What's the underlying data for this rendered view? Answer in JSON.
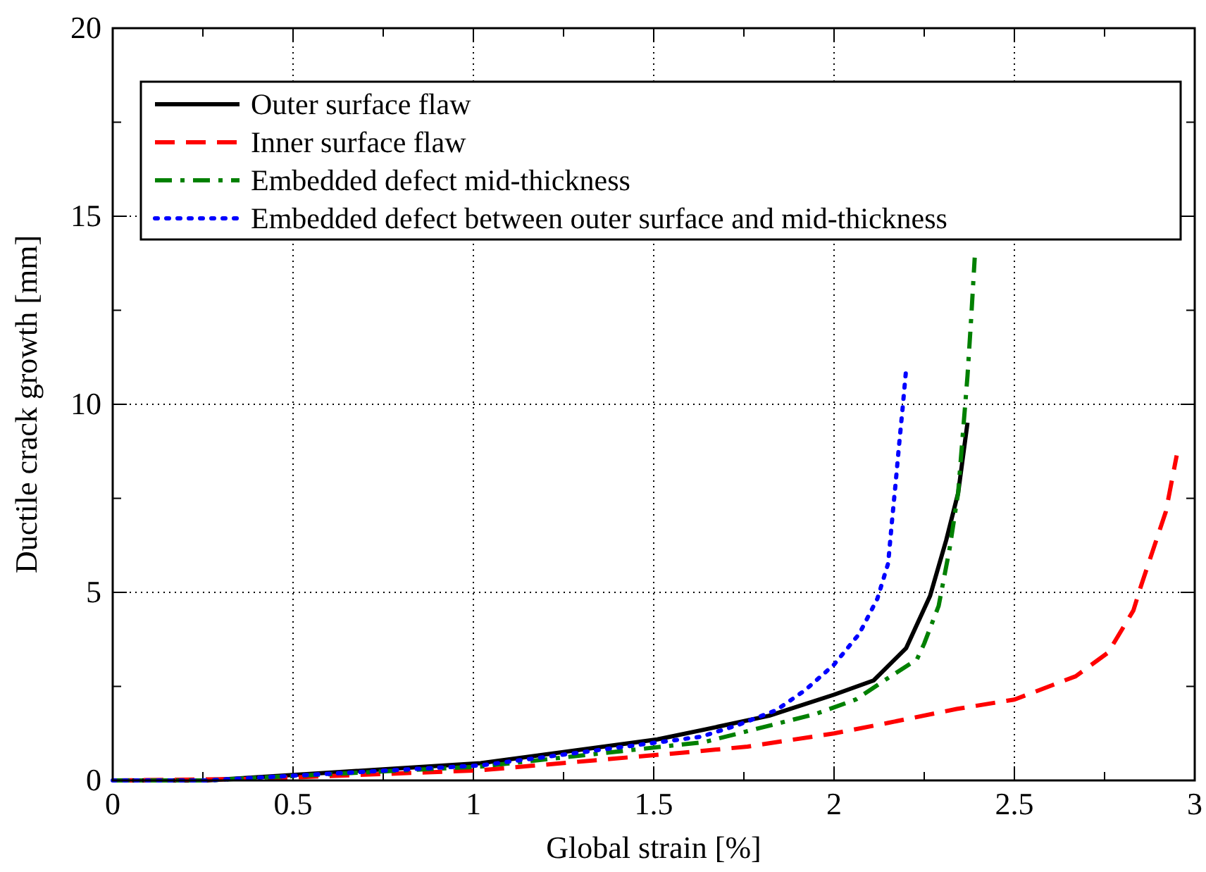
{
  "chart_data": {
    "type": "line",
    "xlabel": "Global strain [%]",
    "ylabel": "Ductile crack growth [mm]",
    "xlim": [
      0,
      3
    ],
    "ylim": [
      0,
      20
    ],
    "xticks": [
      0,
      {
        "value": 0.25,
        "label": null
      },
      0.5,
      {
        "value": 0.75,
        "label": null
      },
      1,
      {
        "value": 1.25,
        "label": null
      },
      1.5,
      {
        "value": 1.75,
        "label": null
      },
      2,
      {
        "value": 2.25,
        "label": null
      },
      2.5,
      {
        "value": 2.75,
        "label": null
      },
      3
    ],
    "yticks": [
      0,
      {
        "value": 2.5,
        "label": null
      },
      5,
      {
        "value": 7.5,
        "label": null
      },
      10,
      {
        "value": 12.5,
        "label": null
      },
      15,
      {
        "value": 17.5,
        "label": null
      },
      20
    ],
    "grid": true,
    "legend": "top left",
    "marker": "none",
    "series": [
      {
        "name": "Outer surface flaw",
        "color": "#000000",
        "line_style": "solid",
        "x": [
          0,
          0.26,
          1.02,
          1.51,
          1.64,
          1.82,
          2.0,
          2.11,
          2.2,
          2.266,
          2.311,
          2.344,
          2.37
        ],
        "values": [
          0,
          0,
          0.46,
          1.09,
          1.35,
          1.72,
          2.28,
          2.66,
          3.52,
          4.9,
          6.39,
          7.64,
          9.51
        ]
      },
      {
        "name": "Inner surface flaw",
        "color": "#ff0000",
        "line_style": "dashed",
        "x": [
          0,
          0.39,
          1.02,
          1.63,
          1.76,
          2.0,
          2.15,
          2.34,
          2.5,
          2.67,
          2.76,
          2.83,
          2.85,
          2.92,
          2.95
        ],
        "values": [
          0,
          0.04,
          0.27,
          0.78,
          0.9,
          1.25,
          1.53,
          1.9,
          2.15,
          2.77,
          3.4,
          4.52,
          5.14,
          7.15,
          8.64
        ]
      },
      {
        "name": "Embedded defect mid-thickness",
        "color": "#008000",
        "line_style": "dashdot",
        "x": [
          0,
          0.26,
          1.02,
          1.64,
          1.95,
          2.06,
          2.14,
          2.23,
          2.25,
          2.29,
          2.32,
          2.344,
          2.37,
          2.38,
          2.39
        ],
        "values": [
          0,
          0,
          0.37,
          1.02,
          1.77,
          2.15,
          2.66,
          3.22,
          3.64,
          4.64,
          6.14,
          7.64,
          10.76,
          12.26,
          13.9
        ]
      },
      {
        "name": "Embedded defect between outer surface and mid-thickness",
        "color": "#0000ff",
        "line_style": "dotted",
        "x": [
          0,
          0.26,
          1.02,
          1.63,
          1.73,
          1.84,
          1.92,
          2.0,
          2.07,
          2.12,
          2.15,
          2.16,
          2.17,
          2.18,
          2.19,
          2.2
        ],
        "values": [
          0,
          0,
          0.4,
          1.16,
          1.46,
          1.87,
          2.4,
          3.08,
          3.9,
          4.83,
          5.77,
          6.83,
          7.83,
          8.89,
          9.89,
          10.95
        ]
      }
    ]
  }
}
